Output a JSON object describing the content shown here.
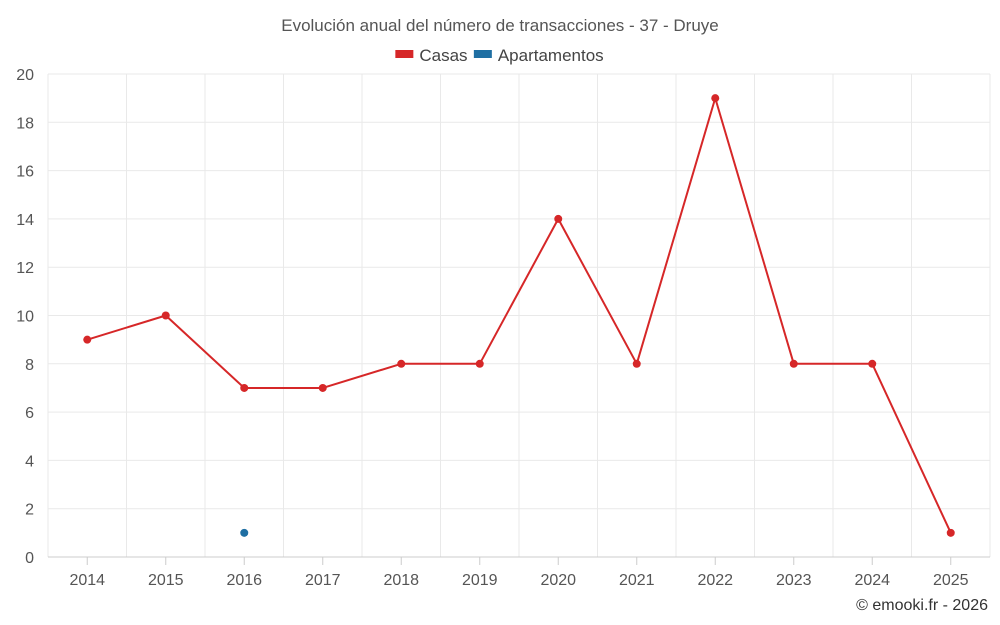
{
  "chart_data": {
    "type": "line",
    "title": "Evolución anual del número de transacciones - 37 - Druye",
    "categories": [
      "2014",
      "2015",
      "2016",
      "2017",
      "2018",
      "2019",
      "2020",
      "2021",
      "2022",
      "2023",
      "2024",
      "2025"
    ],
    "series": [
      {
        "name": "Casas",
        "color": "#d62728",
        "values": [
          9,
          10,
          7,
          7,
          8,
          8,
          14,
          8,
          19,
          8,
          8,
          1
        ]
      },
      {
        "name": "Apartamentos",
        "color": "#1f6fa3",
        "values": [
          null,
          null,
          1,
          null,
          null,
          null,
          null,
          null,
          null,
          null,
          null,
          null
        ]
      }
    ],
    "ylim": [
      0,
      20
    ],
    "yticks": [
      0,
      2,
      4,
      6,
      8,
      10,
      12,
      14,
      16,
      18,
      20
    ],
    "xlabel": "",
    "ylabel": "",
    "grid": true,
    "legend": "top-center"
  },
  "credit": "© emooki.fr - 2026"
}
